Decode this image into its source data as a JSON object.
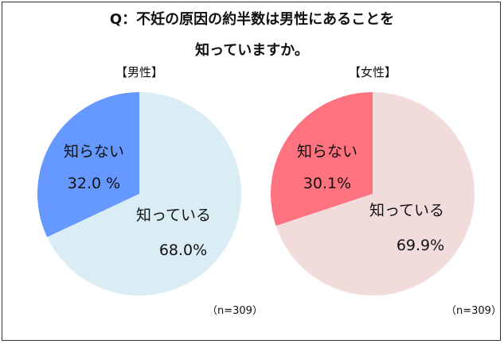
{
  "title_line1": "Q：不妊の原因の約半数は男性にあることを",
  "title_line2": "知っていますか。",
  "chart_data": [
    {
      "type": "pie",
      "title": "【男性】",
      "categories": [
        "知らない",
        "知っている"
      ],
      "values": [
        32.0,
        68.0
      ],
      "value_labels": [
        "32.0 %",
        "68.0%"
      ],
      "colors": [
        "#6699ff",
        "#daedf5"
      ],
      "note": "（n=309）"
    },
    {
      "type": "pie",
      "title": "【女性】",
      "categories": [
        "知らない",
        "知っている"
      ],
      "values": [
        30.1,
        69.9
      ],
      "value_labels": [
        "30.1%",
        "69.9%"
      ],
      "colors": [
        "#ff7380",
        "#f2dcdb"
      ],
      "note": "（n=309）"
    }
  ]
}
